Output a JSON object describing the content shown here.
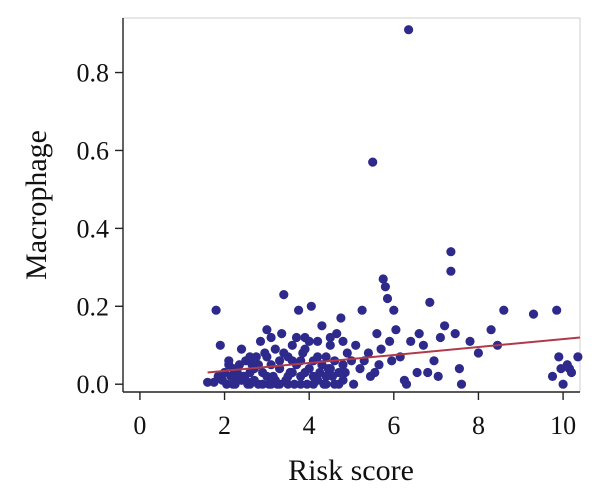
{
  "chart_data": {
    "type": "scatter",
    "title": "",
    "xlabel": "Risk score",
    "ylabel": "Macrophage",
    "xlim": [
      -0.4,
      10.4
    ],
    "ylim": [
      -0.02,
      0.94
    ],
    "xticks": [
      0,
      2,
      4,
      6,
      8,
      10
    ],
    "yticks": [
      0.0,
      0.2,
      0.4,
      0.6,
      0.8
    ],
    "ytick_labels": [
      "0.0",
      "0.2",
      "0.4",
      "0.6",
      "0.8"
    ],
    "grid": false,
    "legend": "none",
    "colors": {
      "points": "#2e2a8c",
      "trend": "#b03a4a"
    },
    "trend_line": {
      "x": [
        1.6,
        10.4
      ],
      "y": [
        0.03,
        0.12
      ]
    },
    "series": [
      {
        "points": [
          [
            1.6,
            0.005
          ],
          [
            1.75,
            0.005
          ],
          [
            1.8,
            0.19
          ],
          [
            1.85,
            0.02
          ],
          [
            1.9,
            0.1
          ],
          [
            1.95,
            0.01
          ],
          [
            2.0,
            0.03
          ],
          [
            2.05,
            0.0
          ],
          [
            2.1,
            0.06
          ],
          [
            2.15,
            0.02
          ],
          [
            2.2,
            0.04
          ],
          [
            2.25,
            0.0
          ],
          [
            2.3,
            0.01
          ],
          [
            2.35,
            0.05
          ],
          [
            2.4,
            0.09
          ],
          [
            2.45,
            0.02
          ],
          [
            2.5,
            0.06
          ],
          [
            2.55,
            0.0
          ],
          [
            2.6,
            0.03
          ],
          [
            2.65,
            0.05
          ],
          [
            2.7,
            0.01
          ],
          [
            2.75,
            0.07
          ],
          [
            2.8,
            0.0
          ],
          [
            2.85,
            0.11
          ],
          [
            2.9,
            0.03
          ],
          [
            2.95,
            0.08
          ],
          [
            3.0,
            0.14
          ],
          [
            3.05,
            0.0
          ],
          [
            3.1,
            0.05
          ],
          [
            3.15,
            0.02
          ],
          [
            3.2,
            0.09
          ],
          [
            3.25,
            0.0
          ],
          [
            3.3,
            0.04
          ],
          [
            3.35,
            0.13
          ],
          [
            3.4,
            0.23
          ],
          [
            3.45,
            0.01
          ],
          [
            3.5,
            0.07
          ],
          [
            3.55,
            0.03
          ],
          [
            3.6,
            0.1
          ],
          [
            3.65,
            0.0
          ],
          [
            3.7,
            0.05
          ],
          [
            3.75,
            0.19
          ],
          [
            3.8,
            0.02
          ],
          [
            3.85,
            0.08
          ],
          [
            3.9,
            0.12
          ],
          [
            3.95,
            0.0
          ],
          [
            4.0,
            0.04
          ],
          [
            4.05,
            0.2
          ],
          [
            4.1,
            0.06
          ],
          [
            4.15,
            0.01
          ],
          [
            4.2,
            0.11
          ],
          [
            4.25,
            0.03
          ],
          [
            4.3,
            0.15
          ],
          [
            4.35,
            0.0
          ],
          [
            4.4,
            0.07
          ],
          [
            4.45,
            0.04
          ],
          [
            4.5,
            0.1
          ],
          [
            4.55,
            0.02
          ],
          [
            4.6,
            0.06
          ],
          [
            4.65,
            0.13
          ],
          [
            4.7,
            0.0
          ],
          [
            4.75,
            0.17
          ],
          [
            4.8,
            0.05
          ],
          [
            4.85,
            0.03
          ],
          [
            4.9,
            0.08
          ],
          [
            5.0,
            0.06
          ],
          [
            5.1,
            0.1
          ],
          [
            5.2,
            0.04
          ],
          [
            5.25,
            0.19
          ],
          [
            5.4,
            0.08
          ],
          [
            5.5,
            0.57
          ],
          [
            5.55,
            0.03
          ],
          [
            5.6,
            0.13
          ],
          [
            5.65,
            0.05
          ],
          [
            5.7,
            0.09
          ],
          [
            5.75,
            0.27
          ],
          [
            5.8,
            0.25
          ],
          [
            5.85,
            0.22
          ],
          [
            5.9,
            0.11
          ],
          [
            5.95,
            0.06
          ],
          [
            6.0,
            0.19
          ],
          [
            6.05,
            0.14
          ],
          [
            6.15,
            0.07
          ],
          [
            6.25,
            0.01
          ],
          [
            6.35,
            0.91
          ],
          [
            6.4,
            0.11
          ],
          [
            6.55,
            0.03
          ],
          [
            6.6,
            0.13
          ],
          [
            6.7,
            0.1
          ],
          [
            6.85,
            0.21
          ],
          [
            6.95,
            0.06
          ],
          [
            7.05,
            0.02
          ],
          [
            7.1,
            0.12
          ],
          [
            7.2,
            0.15
          ],
          [
            7.35,
            0.34
          ],
          [
            7.35,
            0.29
          ],
          [
            7.45,
            0.13
          ],
          [
            7.55,
            0.04
          ],
          [
            7.6,
            0.0
          ],
          [
            7.8,
            0.11
          ],
          [
            8.0,
            0.08
          ],
          [
            8.3,
            0.14
          ],
          [
            8.45,
            0.1
          ],
          [
            8.6,
            0.19
          ],
          [
            9.3,
            0.18
          ],
          [
            9.75,
            0.02
          ],
          [
            9.85,
            0.19
          ],
          [
            9.95,
            0.04
          ],
          [
            10.0,
            0.0
          ],
          [
            10.1,
            0.05
          ],
          [
            10.2,
            0.03
          ],
          [
            10.35,
            0.07
          ],
          [
            10.15,
            0.04
          ],
          [
            9.9,
            0.07
          ],
          [
            2.1,
            0.05
          ],
          [
            2.4,
            0.01
          ],
          [
            2.6,
            0.07
          ],
          [
            2.9,
            0.0
          ],
          [
            3.1,
            0.12
          ],
          [
            3.3,
            0.06
          ],
          [
            3.5,
            0.0
          ],
          [
            3.7,
            0.12
          ],
          [
            3.9,
            0.03
          ],
          [
            4.1,
            0.0
          ],
          [
            4.3,
            0.05
          ],
          [
            4.5,
            0.12
          ],
          [
            4.7,
            0.03
          ],
          [
            2.3,
            0.03
          ],
          [
            2.7,
            0.04
          ],
          [
            3.0,
            0.02
          ],
          [
            3.2,
            0.01
          ],
          [
            3.4,
            0.08
          ],
          [
            3.6,
            0.03
          ],
          [
            3.8,
            0.06
          ],
          [
            4.0,
            0.11
          ],
          [
            4.2,
            0.01
          ],
          [
            4.4,
            0.02
          ],
          [
            4.6,
            0.0
          ],
          [
            4.8,
            0.01
          ],
          [
            5.05,
            0.0
          ],
          [
            2.5,
            0.01
          ],
          [
            2.8,
            0.05
          ],
          [
            3.0,
            0.07
          ],
          [
            3.3,
            0.0
          ],
          [
            3.6,
            0.06
          ],
          [
            3.9,
            0.09
          ],
          [
            4.2,
            0.07
          ],
          [
            4.5,
            0.04
          ],
          [
            2.2,
            0.0
          ],
          [
            2.6,
            0.0
          ],
          [
            3.1,
            0.0
          ],
          [
            3.5,
            0.02
          ],
          [
            3.8,
            0.0
          ],
          [
            4.1,
            0.02
          ],
          [
            4.4,
            0.0
          ],
          [
            4.8,
            0.11
          ],
          [
            5.3,
            0.06
          ],
          [
            5.45,
            0.02
          ],
          [
            6.3,
            0.0
          ],
          [
            6.8,
            0.03
          ]
        ]
      }
    ]
  }
}
